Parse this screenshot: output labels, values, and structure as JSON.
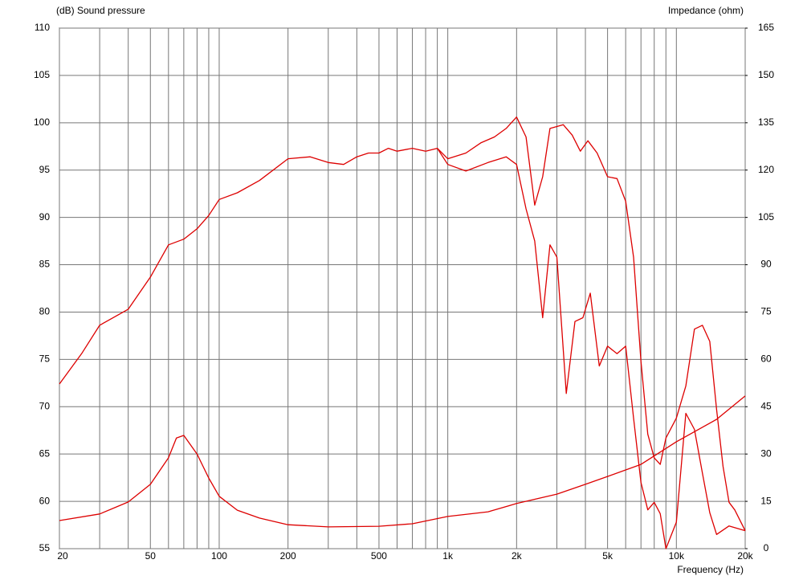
{
  "chart_data": {
    "type": "line",
    "xscale": "log",
    "grid": true,
    "y_label": "(dB)  Sound pressure",
    "y2_label": "Impedance  (ohm)",
    "x_label": "Frequency  (Hz)",
    "xlim": [
      20,
      20000
    ],
    "xticks": [
      20,
      50,
      100,
      200,
      500,
      {
        "value": 1000,
        "label": "1k"
      },
      {
        "value": 2000,
        "label": "2k"
      },
      {
        "value": 5000,
        "label": "5k"
      },
      {
        "value": 10000,
        "label": "10k"
      },
      {
        "value": 20000,
        "label": "20k"
      }
    ],
    "xminor_ticks": [
      30,
      40,
      60,
      70,
      80,
      90,
      300,
      400,
      600,
      700,
      800,
      900,
      3000,
      4000,
      6000,
      7000,
      8000,
      9000
    ],
    "ylim": [
      55,
      110
    ],
    "yticks": [
      55,
      60,
      65,
      70,
      75,
      80,
      85,
      90,
      95,
      100,
      105,
      110
    ],
    "y2lim": [
      0,
      165
    ],
    "y2ticks": [
      0,
      15,
      30,
      45,
      60,
      75,
      90,
      105,
      120,
      135,
      150,
      165
    ],
    "series": [
      {
        "color": "#dd0000",
        "x": [
          20,
          25,
          30,
          40,
          50,
          60,
          70,
          80,
          90,
          100,
          120,
          150,
          200,
          250,
          300,
          350,
          400,
          450,
          500,
          550,
          600,
          700,
          800,
          900,
          1000,
          1200,
          1400,
          1600,
          1800,
          2000,
          2200,
          2400,
          2600,
          2800,
          3000,
          3200,
          3500,
          3800,
          4100,
          4500,
          5000,
          5500,
          6000,
          6500,
          7000,
          7500,
          8000,
          8500,
          9000,
          10000,
          11000,
          12000,
          13000,
          14000,
          15000,
          16000,
          17000,
          18000,
          20000
        ],
        "values": [
          72.4,
          75.6,
          78.6,
          80.3,
          83.7,
          87.1,
          87.7,
          88.8,
          90.2,
          91.9,
          92.6,
          93.9,
          96.2,
          96.4,
          95.8,
          95.6,
          96.4,
          96.8,
          96.8,
          97.3,
          97.0,
          97.3,
          97.0,
          97.3,
          96.2,
          96.8,
          97.9,
          98.5,
          99.4,
          100.6,
          98.5,
          91.3,
          94.3,
          99.4,
          99.6,
          99.8,
          98.7,
          97.0,
          98.1,
          96.8,
          94.3,
          94.1,
          91.7,
          85.8,
          74.8,
          67.1,
          64.6,
          63.9,
          66.7,
          68.8,
          72.2,
          78.2,
          78.6,
          76.9,
          69.7,
          63.7,
          59.9,
          59.1,
          56.9
        ]
      },
      {
        "color": "#dd0000",
        "x": [
          900,
          1000,
          1200,
          1500,
          1800,
          2000,
          2200,
          2400,
          2600,
          2800,
          3000,
          3300,
          3600,
          3900,
          4200,
          4600,
          5000,
          5500,
          6000,
          6500,
          7000,
          7500,
          8000,
          8500,
          9000,
          10000,
          11000,
          12000,
          13000,
          14000,
          15000,
          17000,
          20000
        ],
        "values": [
          97.3,
          95.6,
          94.9,
          95.8,
          96.4,
          95.6,
          90.9,
          87.5,
          79.4,
          87.1,
          85.8,
          71.4,
          79.0,
          79.4,
          82.0,
          74.3,
          76.4,
          75.6,
          76.4,
          68.8,
          62.0,
          59.1,
          59.9,
          58.7,
          55.0,
          57.8,
          69.3,
          67.6,
          63.0,
          58.8,
          56.5,
          57.4,
          56.9
        ]
      },
      {
        "color": "#dd0000",
        "axis": "y2",
        "x": [
          20,
          30,
          40,
          50,
          60,
          65,
          70,
          80,
          90,
          100,
          120,
          150,
          200,
          300,
          500,
          700,
          1000,
          1500,
          2000,
          3000,
          4000,
          5000,
          7000,
          10000,
          15000,
          20000
        ],
        "values": [
          8.9,
          11.0,
          14.8,
          20.4,
          28.8,
          35.1,
          35.9,
          30.0,
          22.4,
          16.6,
          12.2,
          9.7,
          7.6,
          6.9,
          7.1,
          7.9,
          10.2,
          11.7,
          14.3,
          17.3,
          20.4,
          22.9,
          26.7,
          33.9,
          41.0,
          48.4
        ]
      }
    ]
  }
}
